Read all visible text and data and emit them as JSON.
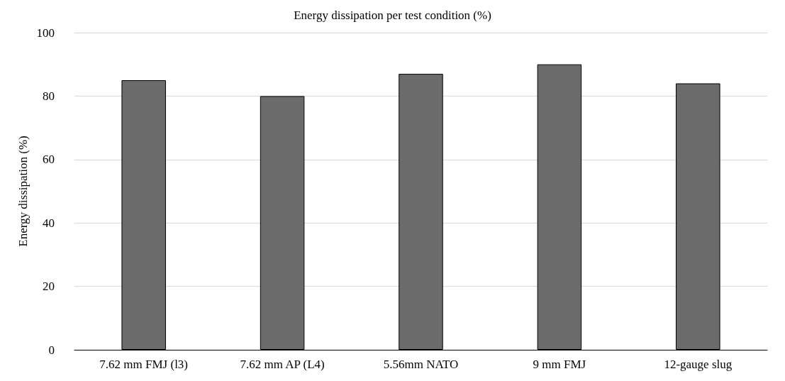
{
  "chart_data": {
    "type": "bar",
    "title": "Energy dissipation per test condition (%)",
    "ylabel": "Energy dissipation (%)",
    "categories": [
      "7.62 mm FMJ (l3)",
      "7.62 mm AP (L4)",
      "5.56mm NATO",
      "9 mm FMJ",
      "12-gauge slug"
    ],
    "values": [
      85,
      80,
      87,
      90,
      84
    ],
    "color": "#6b6b6b",
    "ylim": [
      0,
      100
    ],
    "yticks": [
      0,
      20,
      40,
      60,
      80,
      100
    ],
    "grid": "y"
  }
}
